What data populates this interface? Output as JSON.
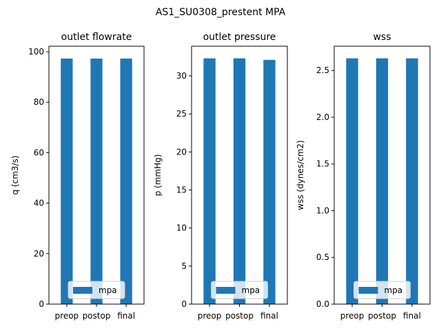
{
  "figure_title": "AS1_SU0308_prestent MPA",
  "colors": {
    "bar": "#1f77b4",
    "axis": "#000000",
    "legend_border": "#cccccc"
  },
  "chart_data": [
    {
      "type": "bar",
      "title": "outlet flowrate",
      "xlabel": "",
      "ylabel": "q (cm3/s)",
      "categories": [
        "preop",
        "postop",
        "final"
      ],
      "series": [
        {
          "name": "mpa",
          "values": [
            97.3,
            97.3,
            97.3
          ]
        }
      ],
      "ylim": [
        0,
        102.2
      ],
      "yticks": [
        0,
        20,
        40,
        60,
        80,
        100
      ],
      "ytick_labels": [
        "0",
        "20",
        "40",
        "60",
        "80",
        "100"
      ],
      "legend": "lower-center",
      "grid": false
    },
    {
      "type": "bar",
      "title": "outlet pressure",
      "xlabel": "",
      "ylabel": "p (mmHg)",
      "categories": [
        "preop",
        "postop",
        "final"
      ],
      "series": [
        {
          "name": "mpa",
          "values": [
            32.3,
            32.3,
            32.1
          ]
        }
      ],
      "ylim": [
        0,
        33.9
      ],
      "yticks": [
        0,
        5,
        10,
        15,
        20,
        25,
        30
      ],
      "ytick_labels": [
        "0",
        "5",
        "10",
        "15",
        "20",
        "25",
        "30"
      ],
      "legend": "lower-center",
      "grid": false
    },
    {
      "type": "bar",
      "title": "wss",
      "xlabel": "",
      "ylabel": "wss (dynes/cm2)",
      "categories": [
        "preop",
        "postop",
        "final"
      ],
      "series": [
        {
          "name": "mpa",
          "values": [
            2.63,
            2.63,
            2.63
          ]
        }
      ],
      "ylim": [
        0,
        2.76
      ],
      "yticks": [
        0,
        0.5,
        1.0,
        1.5,
        2.0,
        2.5
      ],
      "ytick_labels": [
        "0.0",
        "0.5",
        "1.0",
        "1.5",
        "2.0",
        "2.5"
      ],
      "legend": "lower-center",
      "grid": false
    }
  ]
}
